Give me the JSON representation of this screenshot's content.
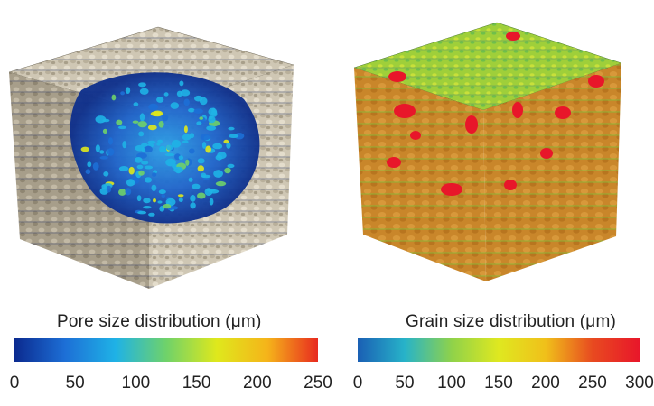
{
  "left_panel": {
    "caption": "Pore size distribution (μm)",
    "ticks": [
      "0",
      "50",
      "100",
      "150",
      "200",
      "250"
    ],
    "colormap": [
      "#0b2a8f",
      "#1d6fd6",
      "#1fb2e6",
      "#6fd26a",
      "#dfe81c",
      "#f5b41a",
      "#e82a1f"
    ]
  },
  "right_panel": {
    "caption": "Grain size distribution (μm)",
    "ticks": [
      "0",
      "50",
      "100",
      "150",
      "200",
      "250",
      "300"
    ],
    "colormap": [
      "#1a5fb4",
      "#27b3c9",
      "#8fd24a",
      "#dfe820",
      "#f0c01a",
      "#e84a20",
      "#e8162a"
    ]
  }
}
